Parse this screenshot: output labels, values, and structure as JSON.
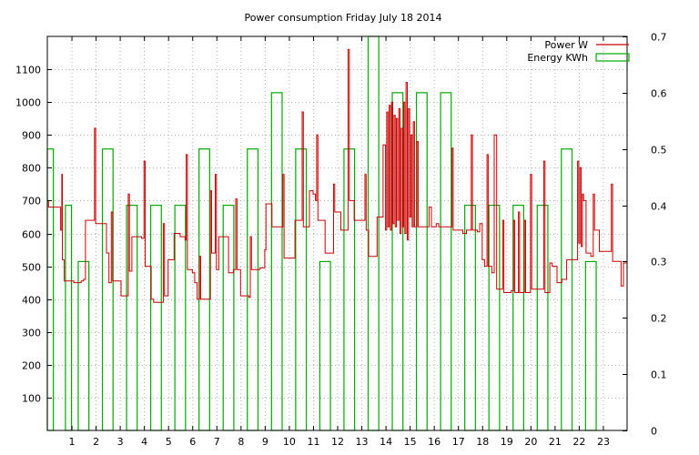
{
  "chart_data": {
    "type": "line",
    "title": "Power consumption Friday July 18 2014",
    "x_ticks": [
      "1",
      "2",
      "3",
      "4",
      "5",
      "6",
      "7",
      "8",
      "9",
      "10",
      "11",
      "12",
      "13",
      "14",
      "15",
      "16",
      "17",
      "18",
      "19",
      "20",
      "21",
      "22",
      "23"
    ],
    "xlim": [
      0,
      24
    ],
    "ylim_left": [
      0,
      1200
    ],
    "ylim_right": [
      0,
      0.7
    ],
    "y_ticks_left": [
      100,
      200,
      300,
      400,
      500,
      600,
      700,
      800,
      900,
      1000,
      1100
    ],
    "y_ticks_right": [
      0,
      0.1,
      0.2,
      0.3,
      0.4,
      0.5,
      0.6,
      0.7
    ],
    "grid": true,
    "legend_position": "top-right",
    "series": [
      {
        "name": "Power W",
        "color": "#cc0000",
        "axis": "left",
        "points": [
          [
            0.0,
            700
          ],
          [
            0.05,
            680
          ],
          [
            0.5,
            680
          ],
          [
            0.55,
            610
          ],
          [
            0.6,
            780
          ],
          [
            0.62,
            520
          ],
          [
            0.7,
            455
          ],
          [
            1.0,
            455
          ],
          [
            1.1,
            450
          ],
          [
            1.4,
            455
          ],
          [
            1.5,
            460
          ],
          [
            1.58,
            640
          ],
          [
            1.9,
            640
          ],
          [
            1.95,
            920
          ],
          [
            2.0,
            630
          ],
          [
            2.4,
            630
          ],
          [
            2.45,
            540
          ],
          [
            2.55,
            450
          ],
          [
            2.65,
            665
          ],
          [
            2.7,
            455
          ],
          [
            3.0,
            455
          ],
          [
            3.05,
            410
          ],
          [
            3.3,
            410
          ],
          [
            3.35,
            720
          ],
          [
            3.4,
            485
          ],
          [
            3.5,
            590
          ],
          [
            3.9,
            585
          ],
          [
            4.0,
            820
          ],
          [
            4.05,
            500
          ],
          [
            4.2,
            500
          ],
          [
            4.3,
            400
          ],
          [
            4.4,
            390
          ],
          [
            4.75,
            390
          ],
          [
            4.8,
            630
          ],
          [
            4.85,
            410
          ],
          [
            5.0,
            520
          ],
          [
            5.2,
            520
          ],
          [
            5.25,
            600
          ],
          [
            5.5,
            590
          ],
          [
            5.7,
            580
          ],
          [
            5.75,
            840
          ],
          [
            5.8,
            490
          ],
          [
            6.0,
            480
          ],
          [
            6.1,
            450
          ],
          [
            6.2,
            400
          ],
          [
            6.3,
            530
          ],
          [
            6.35,
            400
          ],
          [
            6.7,
            400
          ],
          [
            6.75,
            730
          ],
          [
            6.8,
            540
          ],
          [
            6.95,
            780
          ],
          [
            7.0,
            490
          ],
          [
            7.1,
            590
          ],
          [
            7.45,
            590
          ],
          [
            7.5,
            480
          ],
          [
            7.7,
            490
          ],
          [
            7.8,
            705
          ],
          [
            7.85,
            490
          ],
          [
            8.0,
            410
          ],
          [
            8.35,
            405
          ],
          [
            8.4,
            590
          ],
          [
            8.45,
            490
          ],
          [
            8.8,
            495
          ],
          [
            9.0,
            550
          ],
          [
            9.05,
            690
          ],
          [
            9.2,
            690
          ],
          [
            9.3,
            620
          ],
          [
            9.7,
            620
          ],
          [
            9.75,
            780
          ],
          [
            9.8,
            525
          ],
          [
            10.2,
            525
          ],
          [
            10.25,
            640
          ],
          [
            10.5,
            640
          ],
          [
            10.55,
            970
          ],
          [
            10.6,
            620
          ],
          [
            10.8,
            620
          ],
          [
            10.85,
            730
          ],
          [
            11.0,
            720
          ],
          [
            11.1,
            700
          ],
          [
            11.15,
            900
          ],
          [
            11.2,
            640
          ],
          [
            11.4,
            640
          ],
          [
            11.5,
            540
          ],
          [
            11.8,
            540
          ],
          [
            11.85,
            750
          ],
          [
            11.9,
            665
          ],
          [
            12.1,
            665
          ],
          [
            12.15,
            610
          ],
          [
            12.4,
            610
          ],
          [
            12.45,
            1160
          ],
          [
            12.5,
            700
          ],
          [
            12.6,
            700
          ],
          [
            12.7,
            640
          ],
          [
            13.1,
            640
          ],
          [
            13.15,
            780
          ],
          [
            13.2,
            610
          ],
          [
            13.3,
            530
          ],
          [
            13.6,
            530
          ],
          [
            13.65,
            650
          ],
          [
            13.8,
            650
          ],
          [
            13.9,
            870
          ],
          [
            14.0,
            610
          ],
          [
            14.05,
            970
          ],
          [
            14.1,
            620
          ],
          [
            14.15,
            990
          ],
          [
            14.2,
            610
          ],
          [
            14.25,
            1000
          ],
          [
            14.3,
            630
          ],
          [
            14.35,
            960
          ],
          [
            14.4,
            620
          ],
          [
            14.45,
            950
          ],
          [
            14.5,
            640
          ],
          [
            14.55,
            980
          ],
          [
            14.6,
            600
          ],
          [
            14.65,
            920
          ],
          [
            14.7,
            620
          ],
          [
            14.75,
            1000
          ],
          [
            14.8,
            600
          ],
          [
            14.85,
            1060
          ],
          [
            14.9,
            580
          ],
          [
            14.95,
            980
          ],
          [
            15.0,
            650
          ],
          [
            15.05,
            900
          ],
          [
            15.1,
            620
          ],
          [
            15.15,
            940
          ],
          [
            15.2,
            620
          ],
          [
            15.3,
            880
          ],
          [
            15.35,
            620
          ],
          [
            15.7,
            620
          ],
          [
            15.8,
            680
          ],
          [
            15.9,
            620
          ],
          [
            16.0,
            620
          ],
          [
            16.1,
            630
          ],
          [
            16.2,
            620
          ],
          [
            16.7,
            620
          ],
          [
            16.75,
            860
          ],
          [
            16.8,
            610
          ],
          [
            17.1,
            610
          ],
          [
            17.2,
            600
          ],
          [
            17.35,
            610
          ],
          [
            17.5,
            610
          ],
          [
            17.55,
            900
          ],
          [
            17.6,
            610
          ],
          [
            17.8,
            605
          ],
          [
            17.9,
            630
          ],
          [
            18.0,
            520
          ],
          [
            18.1,
            500
          ],
          [
            18.2,
            840
          ],
          [
            18.25,
            500
          ],
          [
            18.4,
            480
          ],
          [
            18.5,
            900
          ],
          [
            18.6,
            430
          ],
          [
            18.8,
            430
          ],
          [
            18.85,
            640
          ],
          [
            18.9,
            420
          ],
          [
            19.2,
            425
          ],
          [
            19.3,
            640
          ],
          [
            19.35,
            420
          ],
          [
            19.5,
            665
          ],
          [
            19.55,
            420
          ],
          [
            19.7,
            420
          ],
          [
            19.75,
            640
          ],
          [
            19.8,
            420
          ],
          [
            19.9,
            420
          ],
          [
            20.0,
            780
          ],
          [
            20.05,
            430
          ],
          [
            20.5,
            430
          ],
          [
            20.55,
            820
          ],
          [
            20.6,
            420
          ],
          [
            20.8,
            510
          ],
          [
            20.9,
            500
          ],
          [
            21.1,
            450
          ],
          [
            21.3,
            460
          ],
          [
            21.5,
            520
          ],
          [
            21.9,
            520
          ],
          [
            21.95,
            820
          ],
          [
            22.0,
            570
          ],
          [
            22.05,
            800
          ],
          [
            22.1,
            560
          ],
          [
            22.15,
            720
          ],
          [
            22.2,
            700
          ],
          [
            22.3,
            540
          ],
          [
            22.5,
            530
          ],
          [
            22.6,
            720
          ],
          [
            22.65,
            610
          ],
          [
            22.8,
            610
          ],
          [
            22.85,
            545
          ],
          [
            23.3,
            545
          ],
          [
            23.35,
            750
          ],
          [
            23.4,
            515
          ],
          [
            23.7,
            515
          ],
          [
            23.75,
            440
          ],
          [
            23.85,
            510
          ],
          [
            24.0,
            505
          ]
        ]
      },
      {
        "name": "Energy KWh",
        "color": "#00aa00",
        "axis": "right",
        "bars": [
          {
            "start": 0,
            "end": 1,
            "value": 0.5,
            "visible": [
              0,
              0.25
            ]
          },
          {
            "start": 0,
            "end": 1,
            "value": 0.4,
            "visible": [
              0.75,
              1
            ]
          },
          {
            "start": 1,
            "end": 2,
            "value": 0.3
          },
          {
            "start": 2,
            "end": 3,
            "value": 0.5
          },
          {
            "start": 3,
            "end": 4,
            "value": 0.4
          },
          {
            "start": 4,
            "end": 5,
            "value": 0.4
          },
          {
            "start": 5,
            "end": 6,
            "value": 0.4
          },
          {
            "start": 6,
            "end": 7,
            "value": 0.5
          },
          {
            "start": 7,
            "end": 8,
            "value": 0.4
          },
          {
            "start": 8,
            "end": 9,
            "value": 0.5
          },
          {
            "start": 9,
            "end": 10,
            "value": 0.6
          },
          {
            "start": 10,
            "end": 11,
            "value": 0.5
          },
          {
            "start": 11,
            "end": 12,
            "value": 0.3
          },
          {
            "start": 12,
            "end": 13,
            "value": 0.5
          },
          {
            "start": 13,
            "end": 14,
            "value": 0.7
          },
          {
            "start": 14,
            "end": 15,
            "value": 0.6
          },
          {
            "start": 15,
            "end": 16,
            "value": 0.6
          },
          {
            "start": 16,
            "end": 17,
            "value": 0.6
          },
          {
            "start": 17,
            "end": 18,
            "value": 0.4
          },
          {
            "start": 18,
            "end": 19,
            "value": 0.4
          },
          {
            "start": 19,
            "end": 20,
            "value": 0.4
          },
          {
            "start": 20,
            "end": 21,
            "value": 0.4
          },
          {
            "start": 21,
            "end": 22,
            "value": 0.5
          },
          {
            "start": 22,
            "end": 23,
            "value": 0.3
          }
        ]
      }
    ]
  }
}
